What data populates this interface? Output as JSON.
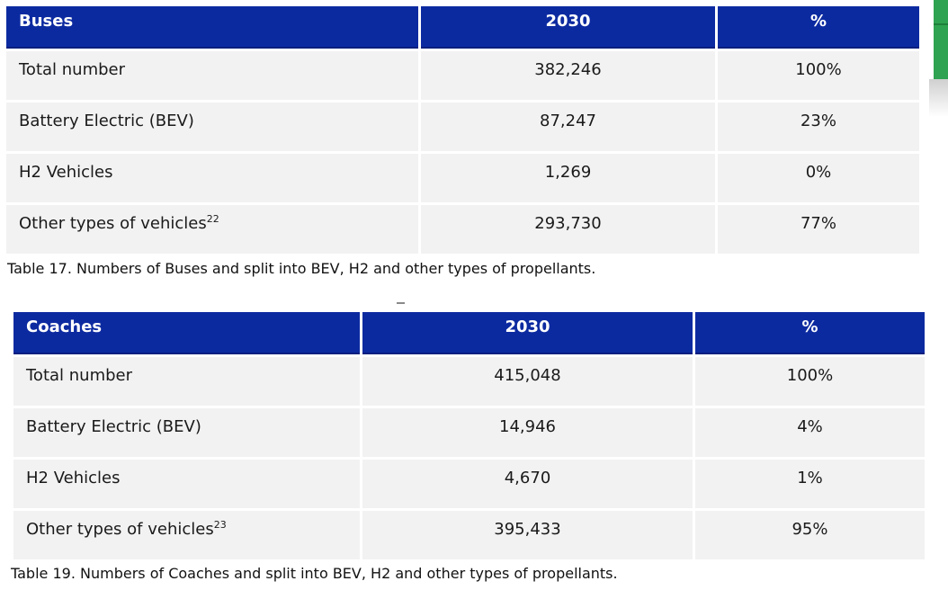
{
  "colors": {
    "header_bg": "#0c2aa0",
    "header_text": "#ffffff",
    "row_bg": "#f2f2f2",
    "body_text": "#1a1a1a",
    "green_accent": "#2fa351",
    "green_accent_dark": "#1f7f3b"
  },
  "tables": [
    {
      "headers": [
        "Buses",
        "2030",
        "%"
      ],
      "rows": [
        {
          "label": "Total number",
          "sup": "",
          "value": "382,246",
          "pct": "100%"
        },
        {
          "label": "Battery Electric (BEV)",
          "sup": "",
          "value": "87,247",
          "pct": "23%"
        },
        {
          "label": "H2 Vehicles",
          "sup": "",
          "value": "1,269",
          "pct": "0%"
        },
        {
          "label": "Other types of vehicles",
          "sup": "22",
          "value": "293,730",
          "pct": "77%"
        }
      ],
      "caption": "Table 17. Numbers of Buses and split into BEV, H2 and other types of propellants."
    },
    {
      "headers": [
        "Coaches",
        "2030",
        "%"
      ],
      "rows": [
        {
          "label": "Total number",
          "sup": "",
          "value": "415,048",
          "pct": "100%"
        },
        {
          "label": "Battery Electric (BEV)",
          "sup": "",
          "value": "14,946",
          "pct": "4%"
        },
        {
          "label": "H2 Vehicles",
          "sup": "",
          "value": "4,670",
          "pct": "1%"
        },
        {
          "label": "Other types of vehicles",
          "sup": "23",
          "value": "395,433",
          "pct": "95%"
        }
      ],
      "caption": "Table 19. Numbers of Coaches and split into BEV, H2 and other types of propellants."
    }
  ],
  "chart_data": [
    {
      "type": "table",
      "title": "Buses",
      "columns": [
        "Buses",
        "2030",
        "%"
      ],
      "rows": [
        [
          "Total number",
          382246,
          "100%"
        ],
        [
          "Battery Electric (BEV)",
          87247,
          "23%"
        ],
        [
          "H2 Vehicles",
          1269,
          "0%"
        ],
        [
          "Other types of vehicles [22]",
          293730,
          "77%"
        ]
      ]
    },
    {
      "type": "table",
      "title": "Coaches",
      "columns": [
        "Coaches",
        "2030",
        "%"
      ],
      "rows": [
        [
          "Total number",
          415048,
          "100%"
        ],
        [
          "Battery Electric (BEV)",
          14946,
          "4%"
        ],
        [
          "H2 Vehicles",
          4670,
          "1%"
        ],
        [
          "Other types of vehicles [23]",
          395433,
          "95%"
        ]
      ]
    }
  ]
}
